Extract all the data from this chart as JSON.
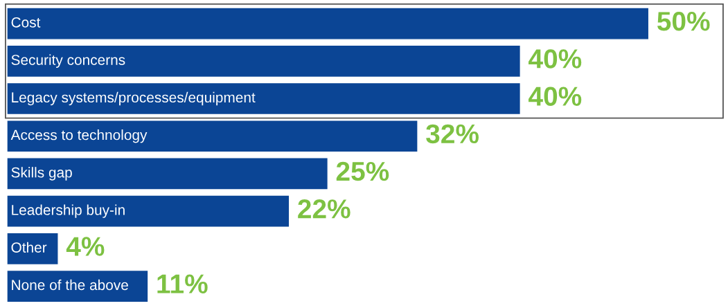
{
  "chart_data": {
    "type": "bar",
    "orientation": "horizontal",
    "categories": [
      "Cost",
      "Security concerns",
      "Legacy systems/processes/equipment",
      "Access to technology",
      "Skills gap",
      "Leadership buy-in",
      "Other",
      "None of the above"
    ],
    "series": [
      {
        "color": "#0b4595",
        "values": [
          50,
          40,
          40,
          32,
          25,
          22,
          4,
          11
        ],
        "value_labels": [
          "50%",
          "40%",
          "40%",
          "32%",
          "25%",
          "22%",
          "4%",
          "11%"
        ]
      }
    ]
  }
}
